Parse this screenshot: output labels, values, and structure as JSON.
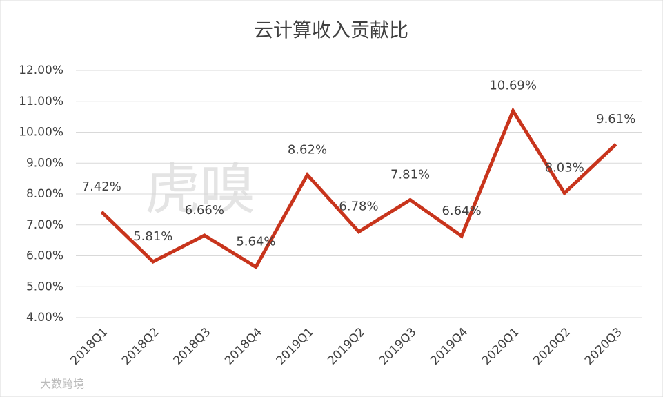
{
  "chart_data": {
    "type": "line",
    "title": "云计算收入贡献比",
    "categories": [
      "2018Q1",
      "2018Q2",
      "2018Q3",
      "2018Q4",
      "2019Q1",
      "2019Q2",
      "2019Q3",
      "2019Q4",
      "2020Q1",
      "2020Q2",
      "2020Q3"
    ],
    "series": [
      {
        "name": "云计算收入贡献比",
        "color": "#c8341c",
        "values": [
          7.42,
          5.81,
          6.66,
          5.64,
          8.62,
          6.78,
          7.81,
          6.64,
          10.69,
          8.03,
          9.61
        ],
        "value_labels": [
          "7.42%",
          "5.81%",
          "6.66%",
          "5.64%",
          "8.62%",
          "6.78%",
          "7.81%",
          "6.64%",
          "10.69%",
          "8.03%",
          "9.61%"
        ]
      }
    ],
    "ylim": [
      4,
      12
    ],
    "yticks": [
      {
        "value": 4,
        "label": "4.00%"
      },
      {
        "value": 5,
        "label": "5.00%"
      },
      {
        "value": 6,
        "label": "6.00%"
      },
      {
        "value": 7,
        "label": "7.00%"
      },
      {
        "value": 8,
        "label": "8.00%"
      },
      {
        "value": 9,
        "label": "9.00%"
      },
      {
        "value": 10,
        "label": "10.00%"
      },
      {
        "value": 11,
        "label": "11.00%"
      },
      {
        "value": 12,
        "label": "12.00%"
      }
    ],
    "grid": true,
    "watermarks": [
      "虎嗅",
      "大数跨境"
    ]
  }
}
